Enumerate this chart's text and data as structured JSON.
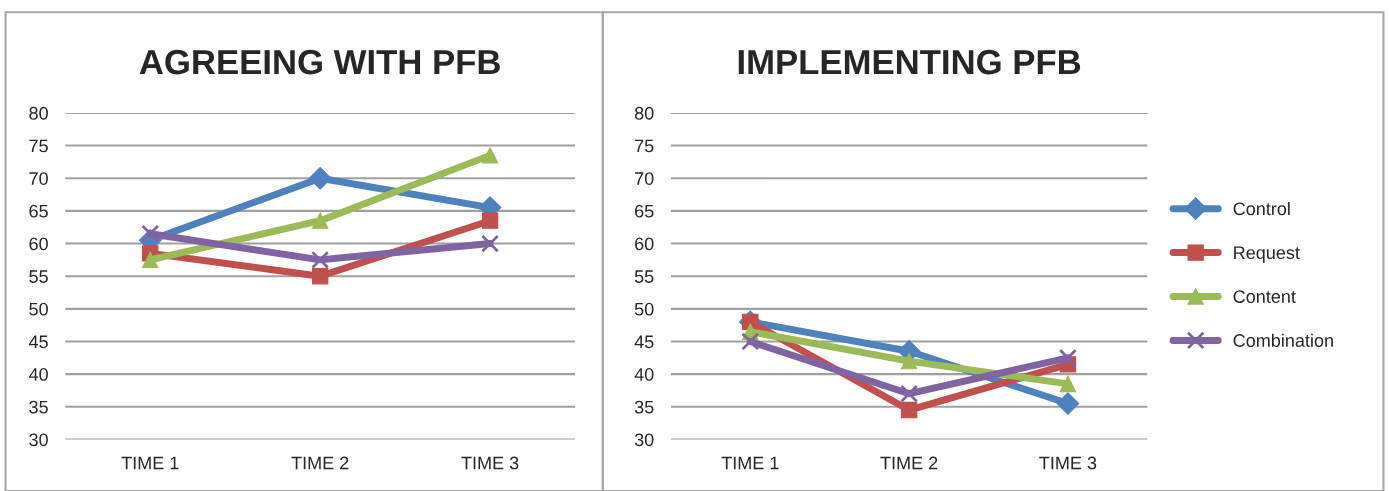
{
  "chart_data": [
    {
      "type": "line",
      "title": "AGREEING WITH PFB",
      "categories": [
        "TIME 1",
        "TIME 2",
        "TIME 3"
      ],
      "ylim": [
        30,
        80
      ],
      "yticks": [
        30,
        35,
        40,
        45,
        50,
        55,
        60,
        65,
        70,
        75,
        80
      ],
      "grid": "y",
      "legend": false,
      "series": [
        {
          "color": "#4f81bd",
          "marker": "diamond",
          "values": [
            60.5,
            70,
            65.5
          ]
        },
        {
          "color": "#c0504d",
          "marker": "square",
          "values": [
            58.5,
            55,
            63.5
          ]
        },
        {
          "color": "#9bbb59",
          "marker": "triangle",
          "values": [
            57.5,
            63.5,
            73.5
          ]
        },
        {
          "color": "#8064a2",
          "marker": "cross",
          "values": [
            61.5,
            57.5,
            60
          ]
        }
      ]
    },
    {
      "type": "line",
      "title": "IMPLEMENTING PFB",
      "categories": [
        "TIME 1",
        "TIME 2",
        "TIME 3"
      ],
      "ylim": [
        30,
        80
      ],
      "yticks": [
        30,
        35,
        40,
        45,
        50,
        55,
        60,
        65,
        70,
        75,
        80
      ],
      "grid": "y",
      "legend": "right",
      "series": [
        {
          "name": "Control",
          "color": "#4f81bd",
          "marker": "diamond",
          "values": [
            48,
            43.5,
            35.5
          ]
        },
        {
          "name": "Request",
          "color": "#c0504d",
          "marker": "square",
          "values": [
            48,
            34.5,
            41.5
          ]
        },
        {
          "name": "Content",
          "color": "#9bbb59",
          "marker": "triangle",
          "values": [
            46.5,
            42,
            38.5
          ]
        },
        {
          "name": "Combination",
          "color": "#8064a2",
          "marker": "cross",
          "values": [
            45,
            37,
            42.5
          ]
        }
      ]
    }
  ]
}
